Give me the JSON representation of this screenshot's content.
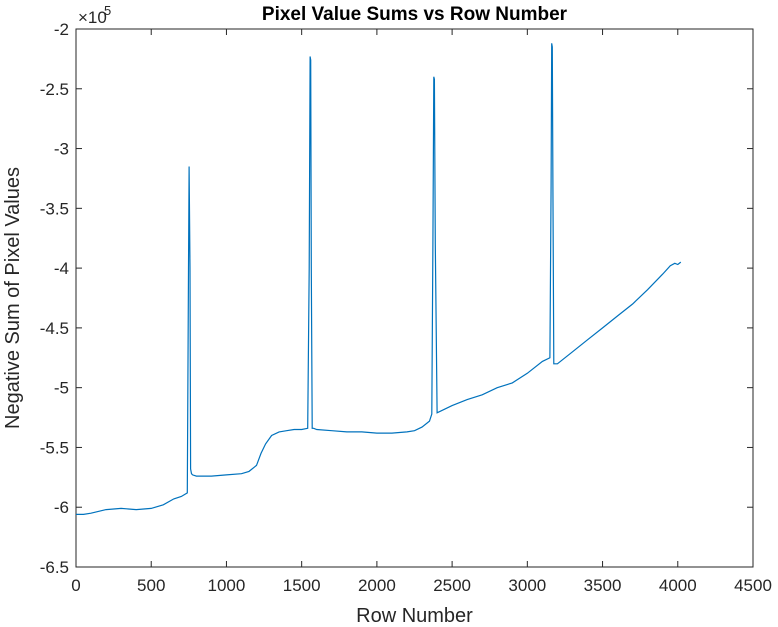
{
  "chart_data": {
    "type": "line",
    "title": "Pixel Value Sums vs Row Number",
    "xlabel": "Row Number",
    "ylabel": "Negative Sum of Pixel Values",
    "xlim": [
      0,
      4500
    ],
    "ylim": [
      -650000,
      -200000
    ],
    "y_exponent_label": "×10",
    "y_exponent_power": "5",
    "xticks": [
      0,
      500,
      1000,
      1500,
      2000,
      2500,
      3000,
      3500,
      4000,
      4500
    ],
    "xtick_labels": [
      "0",
      "500",
      "1000",
      "1500",
      "2000",
      "2500",
      "3000",
      "3500",
      "4000",
      "4500"
    ],
    "yticks": [
      -650000,
      -600000,
      -550000,
      -500000,
      -450000,
      -400000,
      -350000,
      -300000,
      -250000,
      -200000
    ],
    "ytick_labels": [
      "-6.5",
      "-6",
      "-5.5",
      "-5",
      "-4.5",
      "-4",
      "-3.5",
      "-3",
      "-2.5",
      "-2"
    ],
    "grid": false,
    "line_color": "#0072BD",
    "series": [
      {
        "x": [
          0,
          50,
          100,
          200,
          300,
          400,
          500,
          580,
          650,
          700,
          740,
          748,
          752,
          758,
          762,
          768,
          775,
          800,
          900,
          1000,
          1100,
          1150,
          1200,
          1230,
          1260,
          1300,
          1350,
          1400,
          1450,
          1500,
          1540,
          1550,
          1556,
          1560,
          1564,
          1570,
          1580,
          1600,
          1700,
          1800,
          1900,
          2000,
          2100,
          2200,
          2250,
          2300,
          2350,
          2365,
          2372,
          2378,
          2382,
          2388,
          2400,
          2450,
          2500,
          2600,
          2700,
          2800,
          2900,
          3000,
          3100,
          3150,
          3158,
          3162,
          3166,
          3170,
          3176,
          3200,
          3300,
          3400,
          3500,
          3600,
          3700,
          3800,
          3900,
          3950,
          3980,
          4000,
          4020
        ],
        "y": [
          -606000,
          -606000,
          -605000,
          -602000,
          -601000,
          -602000,
          -601000,
          -598000,
          -593000,
          -591000,
          -588000,
          -400000,
          -315000,
          -400000,
          -568000,
          -572000,
          -573000,
          -574000,
          -574000,
          -573000,
          -572000,
          -570000,
          -565000,
          -555000,
          -547000,
          -540000,
          -537000,
          -536000,
          -535000,
          -535000,
          -534000,
          -400000,
          -223000,
          -226000,
          -400000,
          -534000,
          -534000,
          -535000,
          -536000,
          -537000,
          -537000,
          -538000,
          -538000,
          -537000,
          -536000,
          -533000,
          -528000,
          -522000,
          -380000,
          -240000,
          -242000,
          -380000,
          -521000,
          -518000,
          -515000,
          -510000,
          -506000,
          -500000,
          -496000,
          -488000,
          -478000,
          -475000,
          -330000,
          -212000,
          -215000,
          -330000,
          -480000,
          -480000,
          -470000,
          -460000,
          -450000,
          -440000,
          -430000,
          -418000,
          -405000,
          -398000,
          -396000,
          -397000,
          -395000
        ]
      }
    ]
  }
}
